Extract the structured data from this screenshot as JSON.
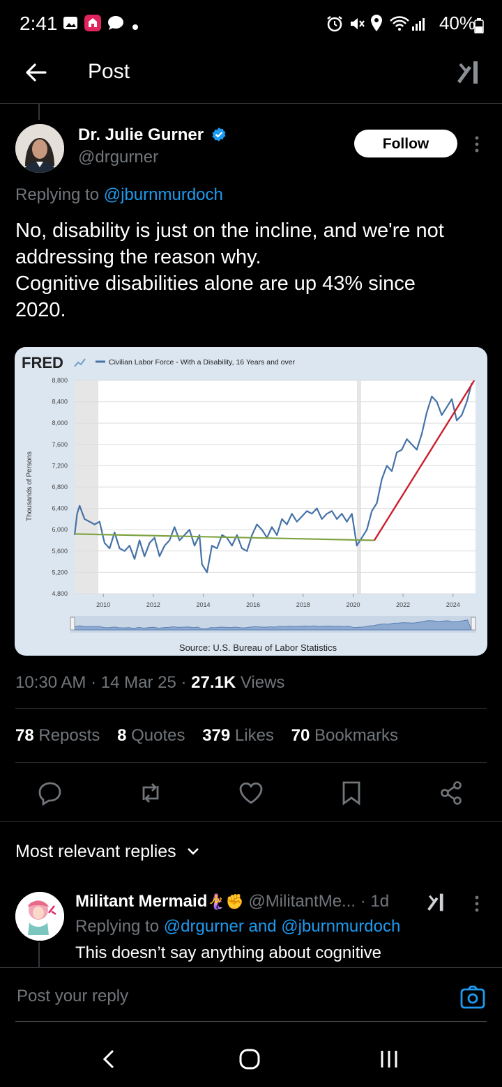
{
  "status_bar": {
    "time": "2:41",
    "battery": "40%"
  },
  "header": {
    "title": "Post"
  },
  "post": {
    "author_name": "Dr. Julie Gurner",
    "author_handle": "@drgurner",
    "follow_label": "Follow",
    "replying_prefix": "Replying to",
    "replying_to": "@jburnmurdoch",
    "text_lines": [
      "No, disability is just on the incline, and we're not",
      "addressing the reason why.",
      "Cognitive disabilities alone are up 43% since",
      "2020."
    ],
    "time": "10:30 AM",
    "date": "14 Mar 25",
    "views_count": "27.1K",
    "views_label": "Views",
    "stats": [
      {
        "count": "78",
        "label": "Reposts"
      },
      {
        "count": "8",
        "label": "Quotes"
      },
      {
        "count": "379",
        "label": "Likes"
      },
      {
        "count": "70",
        "label": "Bookmarks"
      }
    ],
    "actions": [
      "reply-icon",
      "repost-icon",
      "like-icon",
      "bookmark-icon",
      "share-icon"
    ]
  },
  "chart_image": {
    "brand": "FRED",
    "legend": "Civilian Labor Force - With a Disability, 16 Years and over",
    "source": "Source: U.S. Bureau of Labor Statistics",
    "colors": {
      "series": "#4572a7",
      "trend_before": "#7fa343",
      "trend_after": "#cc1e2c"
    }
  },
  "chart_data": {
    "type": "line",
    "title": "",
    "ylabel": "Thousands of Persons",
    "xlabel": "",
    "ylim": [
      4800,
      8800
    ],
    "yticks": [
      "8,800",
      "8,400",
      "8,000",
      "7,600",
      "7,200",
      "6,800",
      "6,400",
      "6,000",
      "5,600",
      "5,200",
      "4,800"
    ],
    "xticks": [
      "2010",
      "2012",
      "2014",
      "2016",
      "2018",
      "2020",
      "2022",
      "2024"
    ],
    "series": [
      {
        "name": "Civilian Labor Force - With a Disability, 16 Years and over",
        "x": [
          2008.9,
          2009.0,
          2009.1,
          2009.3,
          2009.5,
          2009.7,
          2009.9,
          2010.1,
          2010.3,
          2010.5,
          2010.7,
          2010.9,
          2011.1,
          2011.3,
          2011.5,
          2011.7,
          2011.9,
          2012.1,
          2012.3,
          2012.5,
          2012.7,
          2012.9,
          2013.1,
          2013.3,
          2013.5,
          2013.7,
          2013.9,
          2014.0,
          2014.2,
          2014.4,
          2014.6,
          2014.8,
          2015.0,
          2015.2,
          2015.4,
          2015.6,
          2015.8,
          2016.0,
          2016.2,
          2016.4,
          2016.6,
          2016.8,
          2017.0,
          2017.2,
          2017.4,
          2017.6,
          2017.8,
          2018.0,
          2018.2,
          2018.4,
          2018.6,
          2018.8,
          2019.0,
          2019.2,
          2019.4,
          2019.6,
          2019.8,
          2020.0,
          2020.2,
          2020.4,
          2020.6,
          2020.8,
          2021.0,
          2021.2,
          2021.4,
          2021.6,
          2021.8,
          2022.0,
          2022.2,
          2022.4,
          2022.6,
          2022.8,
          2023.0,
          2023.2,
          2023.4,
          2023.6,
          2023.8,
          2024.0,
          2024.2,
          2024.4,
          2024.6,
          2024.8
        ],
        "values": [
          5900,
          6300,
          6450,
          6200,
          6150,
          6100,
          6150,
          5750,
          5650,
          5950,
          5650,
          5600,
          5700,
          5450,
          5800,
          5500,
          5750,
          5850,
          5500,
          5700,
          5800,
          6050,
          5800,
          5900,
          6000,
          5700,
          5900,
          5350,
          5200,
          5700,
          5650,
          5900,
          5850,
          5700,
          5900,
          5650,
          5600,
          5900,
          6100,
          6000,
          5850,
          6050,
          5900,
          6200,
          6100,
          6300,
          6150,
          6250,
          6350,
          6300,
          6400,
          6200,
          6300,
          6350,
          6200,
          6300,
          6150,
          6300,
          5700,
          5850,
          6000,
          6350,
          6500,
          6950,
          7200,
          7100,
          7450,
          7500,
          7700,
          7600,
          7500,
          7800,
          8200,
          8500,
          8400,
          8150,
          8300,
          8450,
          8050,
          8150,
          8400,
          8750
        ]
      },
      {
        "name": "",
        "x": [
          2008.9,
          2020.9
        ],
        "values": [
          5920,
          5800
        ]
      },
      {
        "name": "",
        "x": [
          2020.9,
          2024.9
        ],
        "values": [
          5800,
          8800
        ]
      }
    ]
  },
  "replies": {
    "heading": "Most relevant replies",
    "items": [
      {
        "name": "Militant Mermaid",
        "emojis": "🧜‍♀️✊",
        "handle": "@MilitantMe...",
        "age": "· 1d",
        "replying_prefix": "Replying to",
        "replying_to": "@drgurner and @jburnmurdoch",
        "text": "This doesn’t say anything about cognitive"
      }
    ]
  },
  "composer": {
    "placeholder": "Post your reply"
  }
}
